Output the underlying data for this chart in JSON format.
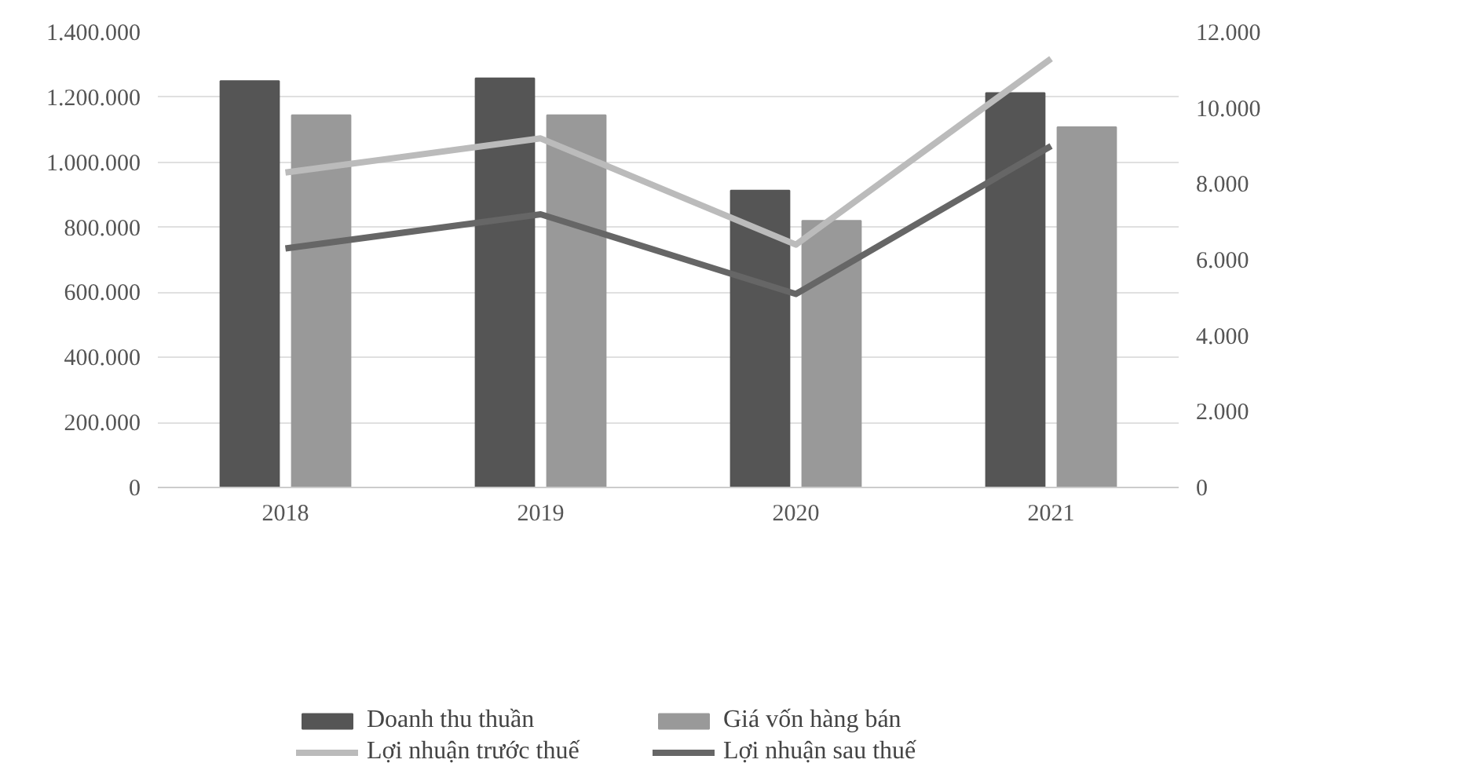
{
  "chart_data": {
    "type": "bar",
    "categories": [
      "2018",
      "2019",
      "2020",
      "2021"
    ],
    "series": [
      {
        "name": "Doanh thu thuần",
        "color": "#555555",
        "values": [
          1250000,
          1258000,
          913000,
          1213000
        ]
      },
      {
        "name": "Giá vốn hàng bán",
        "color": "#999999",
        "values": [
          1145000,
          1145000,
          820000,
          1108000
        ]
      },
      {
        "name": "Lợi nhuận trước thuế",
        "type": "line",
        "axis": "y2",
        "color": "#bbbbbb",
        "values": [
          8300,
          9200,
          6400,
          11300
        ]
      },
      {
        "name": "Lợi nhuận sau thuế",
        "type": "line",
        "axis": "y2",
        "color": "#666666",
        "values": [
          6300,
          7200,
          5100,
          9000
        ]
      }
    ],
    "ylim": [
      0,
      1400000
    ],
    "yticks": [
      {
        "value": 0,
        "label": "0"
      },
      {
        "value": 200000,
        "label": "200.000"
      },
      {
        "value": 400000,
        "label": "400.000"
      },
      {
        "value": 600000,
        "label": "600.000"
      },
      {
        "value": 800000,
        "label": "800.000"
      },
      {
        "value": 1000000,
        "label": "1.000.000"
      },
      {
        "value": 1200000,
        "label": "1.200.000"
      },
      {
        "value": 1400000,
        "label": "1.400.000"
      }
    ],
    "y2lim": [
      0,
      12000
    ],
    "y2ticks": [
      {
        "value": 0,
        "label": "0"
      },
      {
        "value": 2000,
        "label": "2.000"
      },
      {
        "value": 4000,
        "label": "4.000"
      },
      {
        "value": 6000,
        "label": "6.000"
      },
      {
        "value": 8000,
        "label": "8.000"
      },
      {
        "value": 10000,
        "label": "10.000"
      },
      {
        "value": 12000,
        "label": "12.000"
      }
    ],
    "grid": "y",
    "legend": "bottom",
    "line_style": "solid"
  }
}
